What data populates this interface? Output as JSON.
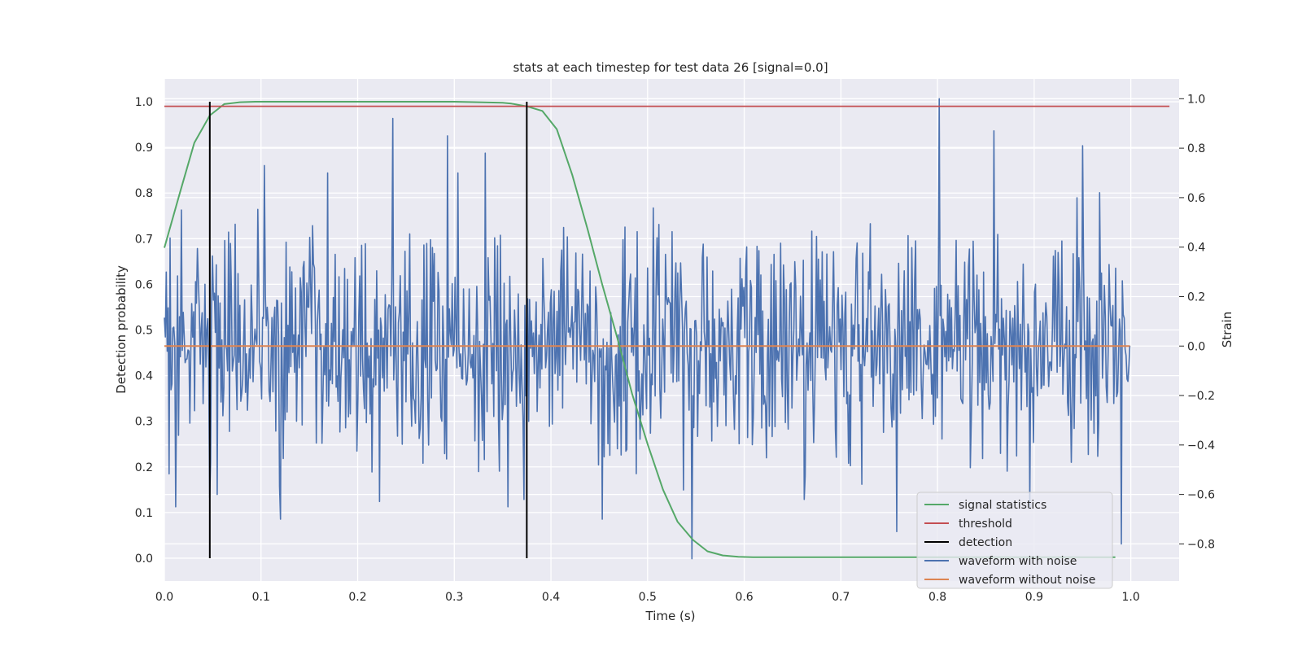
{
  "chart_data": {
    "type": "line",
    "title": "stats at each timestep for test data 26 [signal=0.0]",
    "xlabel": "Time (s)",
    "ylabel": "Detection probability",
    "y2label": "Strain",
    "xlim": [
      0.0,
      1.05
    ],
    "ylim": [
      -0.05,
      1.05
    ],
    "y2lim": [
      -0.95,
      1.08
    ],
    "x_ticks": [
      "0.0",
      "0.1",
      "0.2",
      "0.3",
      "0.4",
      "0.5",
      "0.6",
      "0.7",
      "0.8",
      "0.9",
      "1.0"
    ],
    "y_ticks": [
      "0.0",
      "0.1",
      "0.2",
      "0.3",
      "0.4",
      "0.5",
      "0.6",
      "0.7",
      "0.8",
      "0.9",
      "1.0"
    ],
    "y2_ticks": [
      "−0.8",
      "−0.6",
      "−0.4",
      "−0.2",
      "0.0",
      "0.2",
      "0.4",
      "0.6",
      "0.8",
      "1.0"
    ],
    "grid": true,
    "legend_position": "lower-right",
    "series": [
      {
        "name": "signal statistics",
        "color": "#55a868",
        "axis": "left",
        "x": [
          0.0,
          0.016,
          0.031,
          0.047,
          0.062,
          0.078,
          0.094,
          0.109,
          0.125,
          0.2,
          0.3,
          0.35,
          0.359,
          0.375,
          0.391,
          0.406,
          0.422,
          0.438,
          0.453,
          0.469,
          0.484,
          0.5,
          0.516,
          0.531,
          0.547,
          0.562,
          0.578,
          0.594,
          0.609,
          0.7,
          0.8,
          0.85,
          0.9,
          0.95,
          0.984
        ],
        "y": [
          0.68,
          0.8,
          0.91,
          0.97,
          0.995,
          0.999,
          1.0,
          1.0,
          1.0,
          1.0,
          1.0,
          0.998,
          0.996,
          0.99,
          0.98,
          0.94,
          0.84,
          0.72,
          0.6,
          0.48,
          0.36,
          0.25,
          0.15,
          0.08,
          0.04,
          0.015,
          0.006,
          0.003,
          0.002,
          0.002,
          0.002,
          0.002,
          0.002,
          0.002,
          0.002
        ]
      },
      {
        "name": "threshold",
        "color": "#c44e52",
        "axis": "left",
        "x": [
          0.0,
          1.04
        ],
        "y": [
          0.99,
          0.99
        ]
      },
      {
        "name": "detection",
        "color": "#000000",
        "axis": "left",
        "type": "vlines",
        "x": [
          0.047,
          0.375
        ],
        "y": [
          0.0,
          1.0
        ]
      },
      {
        "name": "waveform with noise",
        "color": "#4c72b0",
        "axis": "right",
        "x_range": [
          0.0,
          0.999
        ],
        "std": 0.22,
        "peaks": [
          [
            0.012,
            -0.65
          ],
          [
            0.018,
            0.55
          ],
          [
            0.048,
            -0.47
          ],
          [
            0.055,
            -0.6
          ],
          [
            0.104,
            0.73
          ],
          [
            0.236,
            0.92
          ],
          [
            0.293,
            0.85
          ],
          [
            0.332,
            0.78
          ],
          [
            0.355,
            -0.65
          ],
          [
            0.372,
            -0.62
          ],
          [
            0.546,
            -0.86
          ],
          [
            0.662,
            -0.62
          ],
          [
            0.758,
            -0.75
          ],
          [
            0.802,
            1.0
          ],
          [
            0.858,
            0.87
          ],
          [
            0.895,
            -0.65
          ],
          [
            0.95,
            0.81
          ],
          [
            0.968,
            0.62
          ],
          [
            0.99,
            -0.8
          ]
        ]
      },
      {
        "name": "waveform without noise",
        "color": "#dd8452",
        "axis": "right",
        "x": [
          0.0,
          0.999
        ],
        "y": [
          0.0,
          0.0
        ]
      }
    ]
  }
}
